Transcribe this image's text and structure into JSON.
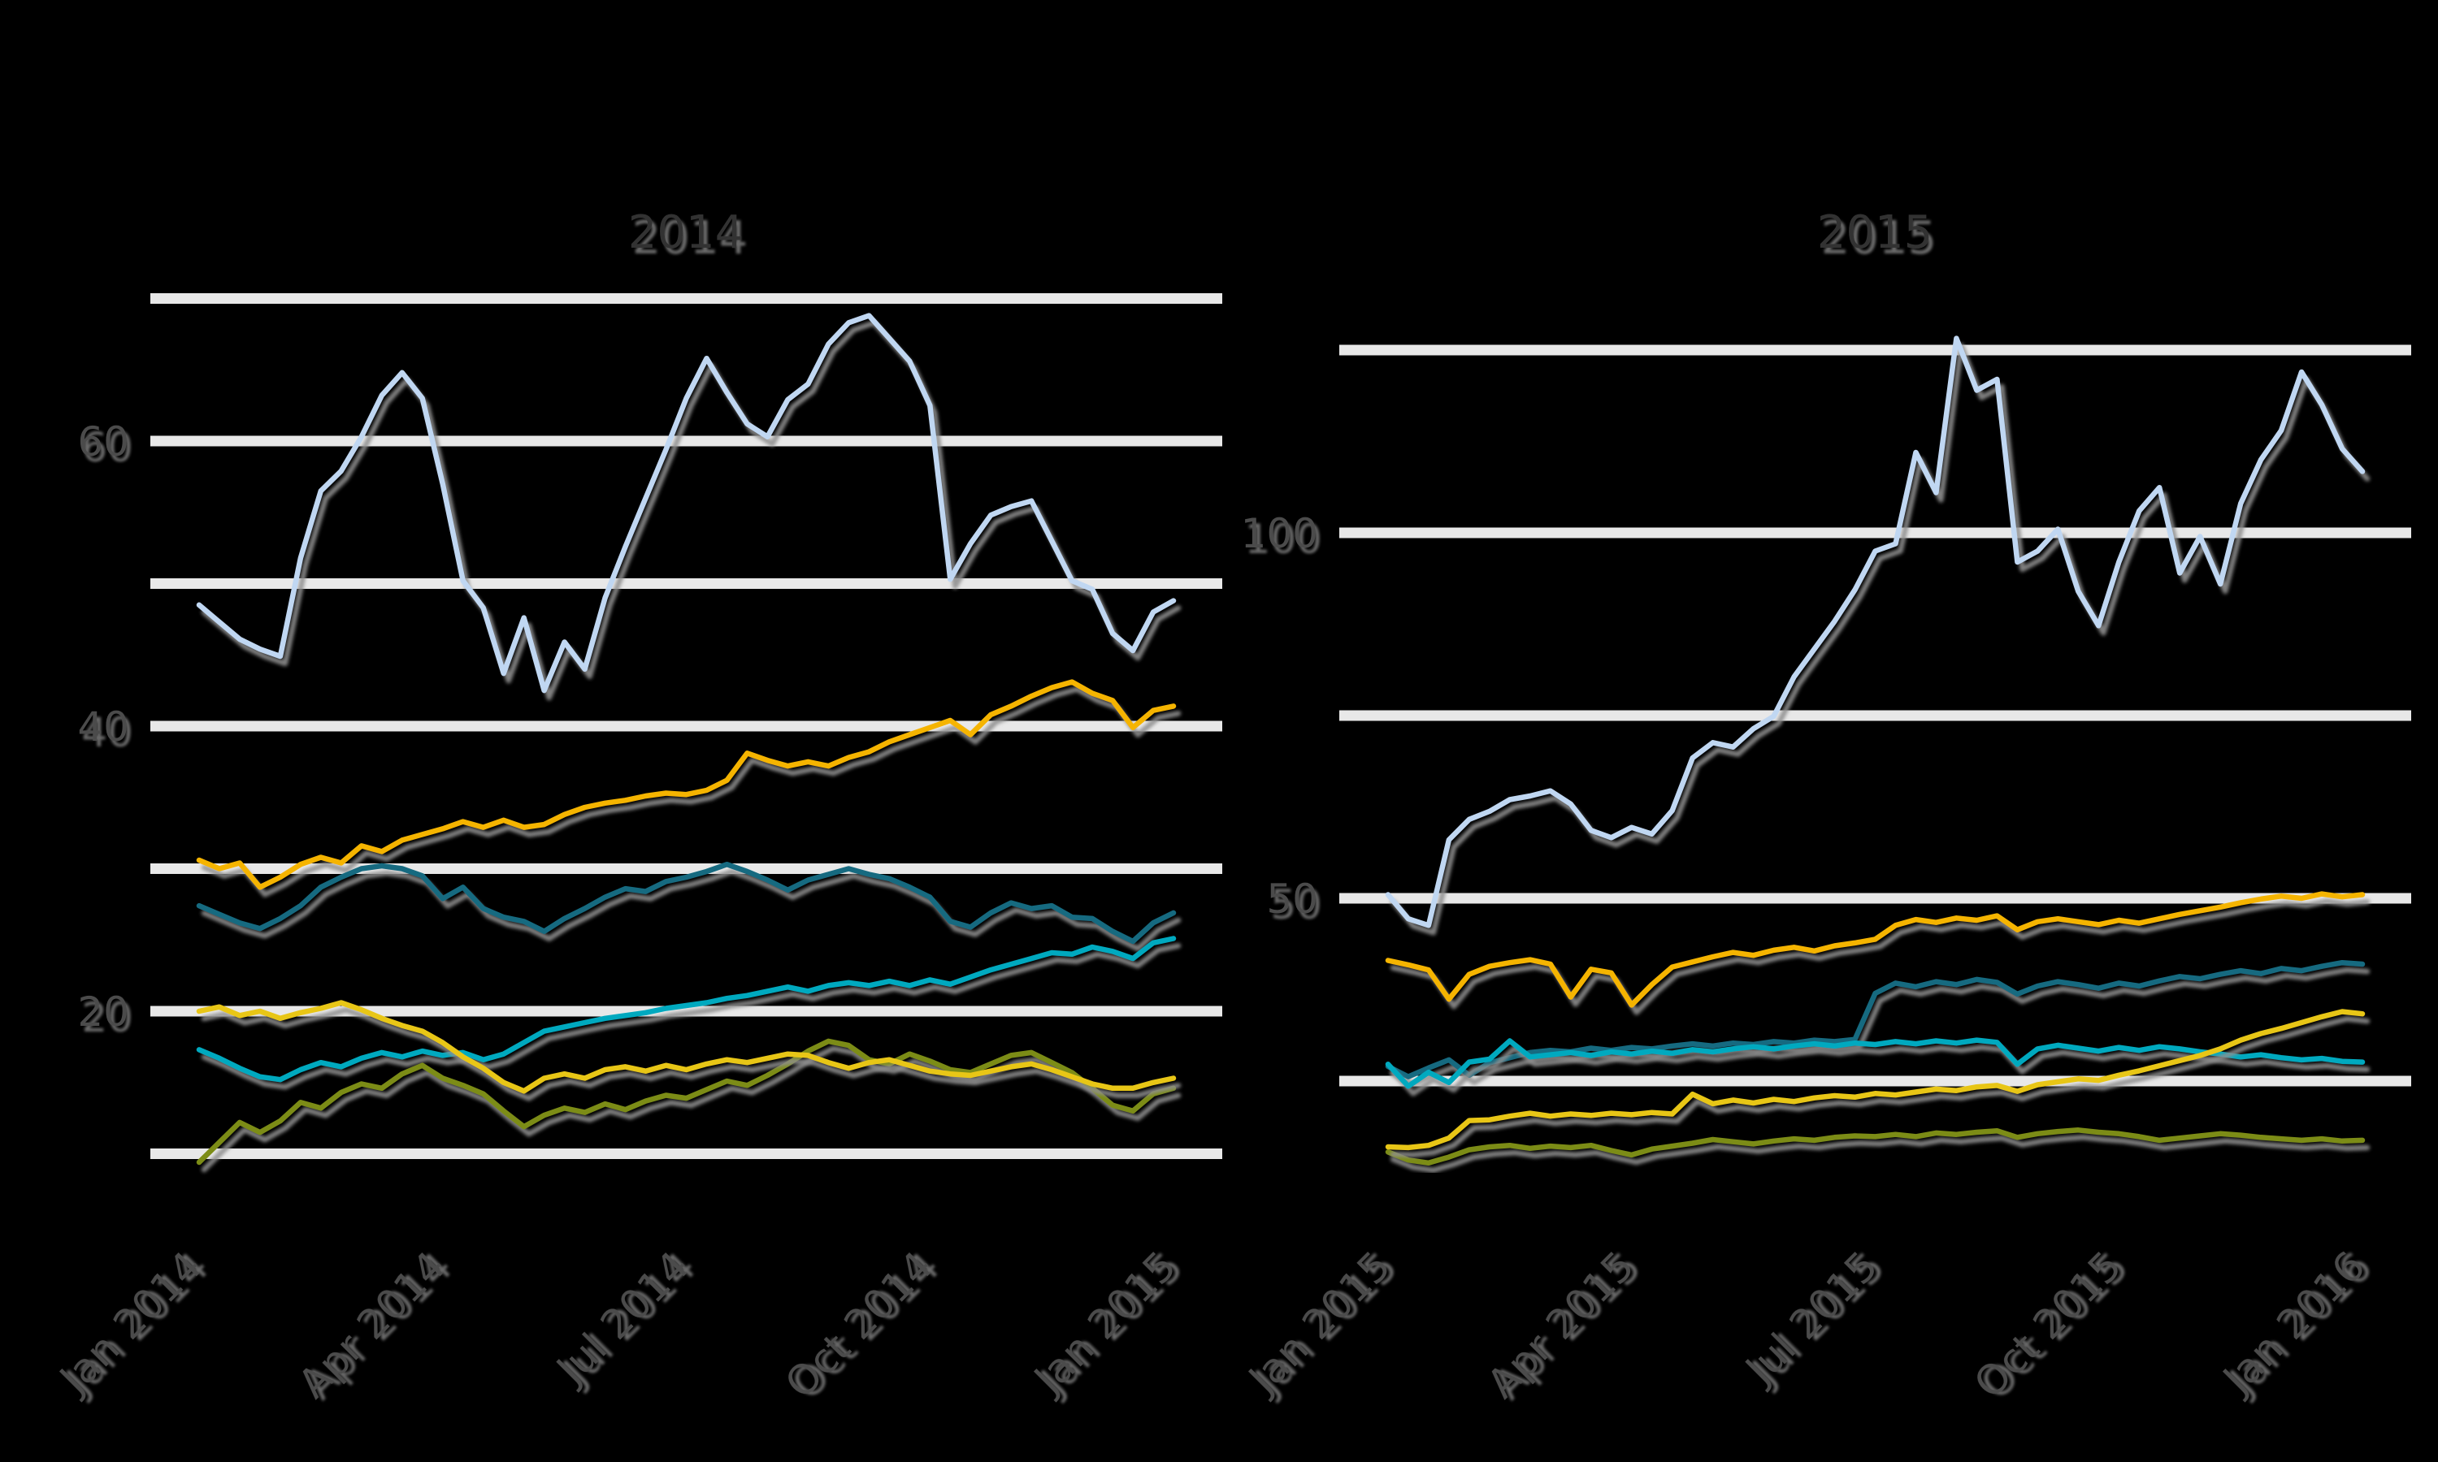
{
  "figure": {
    "background": "#000000",
    "grid_color": "#e8e8e8",
    "axis_text_color": "#4c4c4c",
    "title_color": "#333333",
    "shadow_color": "#8f8f8f"
  },
  "chart_data": [
    {
      "type": "line",
      "title": "2014",
      "xlabel": "",
      "ylabel": "",
      "grid": "on",
      "legend": "none",
      "x_tick_labels": [
        "Jan 2014",
        "Apr 2014",
        "Jul 2014",
        "Oct 2014",
        "Jan 2015"
      ],
      "x_tick_months": [
        0,
        3,
        6,
        9,
        12
      ],
      "y_tick_labels": [
        "20",
        "40",
        "60"
      ],
      "y_tick_values": [
        20,
        40,
        60
      ],
      "gridline_values": [
        10,
        20,
        30,
        40,
        50,
        60,
        70
      ],
      "ylim": [
        6,
        72
      ],
      "xlim_months": [
        -0.6,
        12.6
      ],
      "series": [
        {
          "name": "pale-blue",
          "color": "#c0d7f2",
          "start_month": 0,
          "step_months": 0.25,
          "values": [
            48.5,
            47.3,
            46.1,
            45.4,
            44.9,
            51.8,
            56.5,
            57.9,
            60.3,
            63.2,
            64.8,
            63.0,
            57.0,
            50.2,
            48.3,
            43.7,
            47.6,
            42.5,
            45.9,
            44.0,
            49.0,
            52.6,
            56.0,
            59.4,
            63.0,
            65.8,
            63.4,
            61.2,
            60.3,
            62.9,
            64.0,
            66.8,
            68.3,
            68.8,
            67.2,
            65.6,
            62.5,
            50.3,
            52.8,
            54.8,
            55.4,
            55.8,
            53.0,
            50.2,
            49.6,
            46.5,
            45.3,
            48.0,
            48.8
          ]
        },
        {
          "name": "gold",
          "color": "#f5b400",
          "start_month": 0,
          "step_months": 0.25,
          "values": [
            30.6,
            30.0,
            30.4,
            28.7,
            29.4,
            30.3,
            30.8,
            30.4,
            31.6,
            31.2,
            32.0,
            32.4,
            32.8,
            33.3,
            32.9,
            33.4,
            32.9,
            33.1,
            33.8,
            34.3,
            34.6,
            34.8,
            35.1,
            35.3,
            35.2,
            35.5,
            36.2,
            38.1,
            37.6,
            37.2,
            37.5,
            37.2,
            37.8,
            38.2,
            38.9,
            39.4,
            39.9,
            40.4,
            39.4,
            40.8,
            41.4,
            42.1,
            42.7,
            43.1,
            42.3,
            41.8,
            39.9,
            41.1,
            41.4
          ]
        },
        {
          "name": "dark-teal",
          "color": "#136a80",
          "start_month": 0,
          "step_months": 0.25,
          "values": [
            27.4,
            26.8,
            26.2,
            25.8,
            26.5,
            27.4,
            28.7,
            29.4,
            30.0,
            30.2,
            30.0,
            29.5,
            27.9,
            28.7,
            27.2,
            26.6,
            26.3,
            25.6,
            26.5,
            27.2,
            28.0,
            28.6,
            28.4,
            29.1,
            29.4,
            29.8,
            30.3,
            29.8,
            29.2,
            28.5,
            29.2,
            29.6,
            30.0,
            29.6,
            29.3,
            28.7,
            28.0,
            26.3,
            25.9,
            26.9,
            27.6,
            27.2,
            27.4,
            26.6,
            26.5,
            25.6,
            24.9,
            26.2,
            26.9
          ]
        },
        {
          "name": "cyan",
          "color": "#00a9bf",
          "start_month": 0,
          "step_months": 0.25,
          "values": [
            17.3,
            16.7,
            16.0,
            15.4,
            15.2,
            15.9,
            16.4,
            16.1,
            16.7,
            17.1,
            16.8,
            17.2,
            16.9,
            17.1,
            16.6,
            17.0,
            17.8,
            18.6,
            18.9,
            19.2,
            19.5,
            19.7,
            19.9,
            20.2,
            20.4,
            20.6,
            20.9,
            21.1,
            21.4,
            21.7,
            21.4,
            21.8,
            22.0,
            21.8,
            22.1,
            21.8,
            22.2,
            21.9,
            22.4,
            22.9,
            23.3,
            23.7,
            24.1,
            24.0,
            24.5,
            24.2,
            23.7,
            24.8,
            25.1
          ]
        },
        {
          "name": "olive",
          "color": "#7c8c15",
          "start_month": 0,
          "step_months": 0.25,
          "values": [
            9.4,
            10.8,
            12.2,
            11.5,
            12.3,
            13.6,
            13.2,
            14.3,
            14.9,
            14.6,
            15.6,
            16.2,
            15.3,
            14.8,
            14.2,
            13.0,
            11.9,
            12.7,
            13.2,
            12.9,
            13.5,
            13.1,
            13.7,
            14.1,
            13.9,
            14.5,
            15.1,
            14.8,
            15.5,
            16.3,
            17.2,
            17.9,
            17.6,
            16.6,
            16.3,
            17.0,
            16.5,
            15.9,
            15.7,
            16.3,
            16.9,
            17.1,
            16.4,
            15.7,
            14.6,
            13.4,
            13.0,
            14.2,
            14.6
          ]
        },
        {
          "name": "yellow",
          "color": "#e8c619",
          "start_month": 0,
          "step_months": 0.25,
          "values": [
            20.0,
            20.3,
            19.7,
            20.0,
            19.5,
            19.9,
            20.2,
            20.6,
            20.1,
            19.5,
            19.0,
            18.6,
            17.8,
            16.8,
            16.0,
            15.0,
            14.4,
            15.3,
            15.6,
            15.3,
            15.9,
            16.1,
            15.8,
            16.2,
            15.9,
            16.3,
            16.6,
            16.4,
            16.7,
            17.0,
            16.9,
            16.4,
            16.0,
            16.4,
            16.6,
            16.2,
            15.8,
            15.6,
            15.5,
            15.8,
            16.1,
            16.3,
            15.9,
            15.4,
            14.9,
            14.6,
            14.6,
            15.0,
            15.3
          ]
        }
      ]
    },
    {
      "type": "line",
      "title": "2015",
      "xlabel": "",
      "ylabel": "",
      "grid": "on",
      "legend": "none",
      "x_tick_labels": [
        "Jan 2015",
        "Apr 2015",
        "Jul 2015",
        "Oct 2015",
        "Jan 2016"
      ],
      "x_tick_months": [
        0,
        3,
        6,
        9,
        12
      ],
      "y_tick_labels": [
        "50",
        "100"
      ],
      "y_tick_values": [
        50,
        100
      ],
      "gridline_values": [
        25,
        50,
        75,
        100,
        125
      ],
      "ylim": [
        11,
        139
      ],
      "xlim_months": [
        -0.6,
        12.6
      ],
      "series": [
        {
          "name": "pale-blue",
          "color": "#c0d7f2",
          "start_month": 0,
          "step_months": 0.25,
          "values": [
            50.5,
            47.2,
            46.3,
            58.0,
            60.8,
            61.9,
            63.5,
            64.0,
            64.7,
            62.9,
            59.3,
            58.3,
            59.7,
            58.8,
            62.0,
            69.2,
            71.3,
            70.7,
            73.2,
            74.9,
            80.3,
            84.1,
            87.9,
            92.2,
            97.5,
            98.5,
            111.0,
            105.5,
            126.6,
            119.5,
            121.0,
            96.0,
            97.5,
            100.5,
            92.0,
            87.3,
            96.0,
            103.0,
            106.2,
            94.5,
            99.5,
            93.0,
            104.0,
            110.0,
            114.0,
            122.0,
            117.5,
            111.5,
            108.4
          ]
        },
        {
          "name": "gold",
          "color": "#f5b400",
          "start_month": 0,
          "step_months": 0.25,
          "values": [
            41.5,
            40.9,
            40.2,
            36.2,
            39.6,
            40.7,
            41.2,
            41.6,
            41.0,
            36.5,
            40.3,
            39.8,
            35.4,
            38.2,
            40.6,
            41.3,
            42.0,
            42.6,
            42.2,
            42.9,
            43.3,
            42.8,
            43.5,
            43.9,
            44.4,
            46.3,
            47.1,
            46.7,
            47.3,
            47.0,
            47.6,
            45.7,
            46.8,
            47.2,
            46.8,
            46.4,
            47.0,
            46.6,
            47.2,
            47.8,
            48.3,
            48.8,
            49.4,
            49.9,
            50.3,
            50.0,
            50.6,
            50.2,
            50.5
          ]
        },
        {
          "name": "dark-teal",
          "color": "#136a80",
          "start_month": 0,
          "step_months": 0.25,
          "values": [
            27.0,
            25.6,
            26.8,
            27.9,
            25.8,
            27.5,
            28.2,
            28.9,
            29.2,
            29.0,
            29.5,
            29.2,
            29.6,
            29.4,
            29.8,
            30.1,
            29.8,
            30.2,
            30.0,
            30.4,
            30.2,
            30.6,
            30.4,
            30.7,
            37.0,
            38.4,
            37.9,
            38.6,
            38.2,
            38.9,
            38.5,
            36.9,
            38.0,
            38.6,
            38.2,
            37.7,
            38.4,
            38.0,
            38.7,
            39.3,
            39.0,
            39.6,
            40.1,
            39.7,
            40.4,
            40.1,
            40.7,
            41.2,
            41.0
          ]
        },
        {
          "name": "cyan",
          "color": "#00a9bf",
          "start_month": 0,
          "step_months": 0.25,
          "values": [
            27.3,
            24.3,
            26.2,
            24.8,
            27.6,
            28.0,
            30.5,
            28.3,
            28.6,
            28.9,
            28.5,
            29.0,
            28.7,
            29.1,
            28.8,
            29.3,
            29.0,
            29.4,
            29.7,
            29.4,
            29.8,
            30.1,
            29.8,
            30.2,
            30.0,
            30.4,
            30.1,
            30.5,
            30.2,
            30.6,
            30.3,
            27.3,
            29.4,
            29.9,
            29.5,
            29.1,
            29.6,
            29.2,
            29.7,
            29.4,
            29.0,
            28.7,
            28.3,
            28.6,
            28.2,
            27.9,
            28.1,
            27.7,
            27.6
          ]
        },
        {
          "name": "olive",
          "color": "#7c8c15",
          "start_month": 0,
          "step_months": 0.25,
          "values": [
            15.3,
            14.2,
            13.8,
            14.6,
            15.6,
            16.0,
            16.2,
            15.8,
            16.1,
            15.9,
            16.2,
            15.5,
            14.9,
            15.7,
            16.1,
            16.5,
            17.0,
            16.7,
            16.4,
            16.8,
            17.1,
            16.9,
            17.3,
            17.5,
            17.4,
            17.7,
            17.4,
            17.9,
            17.7,
            18.0,
            18.2,
            17.3,
            17.8,
            18.1,
            18.3,
            18.0,
            17.8,
            17.4,
            16.9,
            17.2,
            17.5,
            17.8,
            17.6,
            17.3,
            17.1,
            16.9,
            17.1,
            16.8,
            16.9
          ]
        },
        {
          "name": "yellow",
          "color": "#e8c619",
          "start_month": 0,
          "step_months": 0.25,
          "values": [
            16.0,
            15.9,
            16.2,
            17.2,
            19.6,
            19.7,
            20.2,
            20.6,
            20.2,
            20.5,
            20.3,
            20.6,
            20.4,
            20.7,
            20.5,
            23.2,
            21.9,
            22.4,
            22.0,
            22.5,
            22.2,
            22.7,
            23.0,
            22.8,
            23.3,
            23.1,
            23.5,
            23.9,
            23.7,
            24.2,
            24.4,
            23.6,
            24.5,
            24.9,
            25.3,
            25.1,
            25.8,
            26.4,
            27.1,
            27.8,
            28.5,
            29.4,
            30.6,
            31.5,
            32.2,
            33.0,
            33.8,
            34.5,
            34.2
          ]
        }
      ]
    }
  ]
}
